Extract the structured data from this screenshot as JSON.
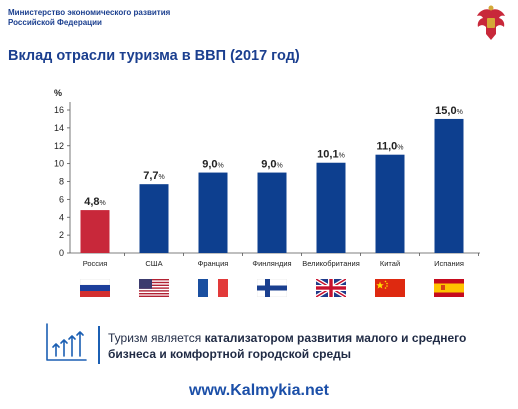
{
  "header": {
    "ministry_line1": "Министерство экономического развития",
    "ministry_line2": "Российской Федерации"
  },
  "emblem": {
    "icon": "double-headed-eagle-icon"
  },
  "slide_title": "Вклад отрасли туризма в ВВП (2017 год)",
  "chart_data": {
    "type": "bar",
    "title": "",
    "ylabel": "%",
    "xlabel": "",
    "ylim": [
      0,
      16
    ],
    "yticks": [
      0,
      2,
      4,
      6,
      8,
      10,
      12,
      14,
      16
    ],
    "categories": [
      "Россия",
      "США",
      "Франция",
      "Финляндия",
      "Великобритания",
      "Китай",
      "Испания"
    ],
    "values": [
      4.8,
      7.7,
      9.0,
      9.0,
      10.1,
      11.0,
      15.0
    ],
    "value_labels": [
      "4,8",
      "7,7",
      "9,0",
      "9,0",
      "10,1",
      "11,0",
      "15,0"
    ],
    "value_suffix": "%",
    "bar_colors": [
      "#c8283a",
      "#0d3f8f",
      "#0d3f8f",
      "#0d3f8f",
      "#0d3f8f",
      "#0d3f8f",
      "#0d3f8f"
    ],
    "grid": false
  },
  "flags": [
    "russia-flag-icon",
    "usa-flag-icon",
    "france-flag-icon",
    "finland-flag-icon",
    "uk-flag-icon",
    "china-flag-icon",
    "spain-flag-icon"
  ],
  "footer": {
    "icon": "growth-arrows-icon",
    "text_prefix": "Туризм является ",
    "text_bold": "катализатором развития малого и среднего бизнеса и комфортной городской среды"
  },
  "watermark": "www.Kalmykia.net"
}
